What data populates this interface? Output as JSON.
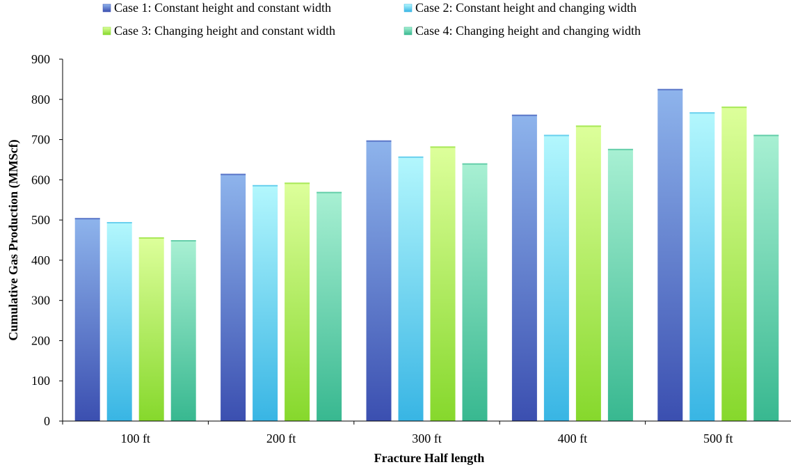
{
  "chart_data": {
    "type": "bar",
    "title": "",
    "xlabel": "Fracture Half length",
    "ylabel": "Cumulative Gas Production (MMScf)",
    "categories": [
      "100 ft",
      "200 ft",
      "300 ft",
      "400 ft",
      "500 ft"
    ],
    "ylim": [
      0,
      900
    ],
    "yticks": [
      0,
      100,
      200,
      300,
      400,
      500,
      600,
      700,
      800,
      900
    ],
    "grid": false,
    "legend_position": "top",
    "series": [
      {
        "name": "Case 1: Constant height and constant width",
        "values": [
          505,
          615,
          698,
          762,
          826
        ],
        "color_top": "#8eb4ec",
        "color_bottom": "#3b4fb0"
      },
      {
        "name": "Case 2: Constant height and changing width",
        "values": [
          495,
          587,
          658,
          712,
          768
        ],
        "color_top": "#b3f7fd",
        "color_bottom": "#38b5e4"
      },
      {
        "name": "Case 3: Changing height and constant width",
        "values": [
          457,
          593,
          683,
          735,
          782
        ],
        "color_top": "#ddff9b",
        "color_bottom": "#86d82c"
      },
      {
        "name": "Case 4: Changing height and changing width",
        "values": [
          450,
          570,
          641,
          677,
          712
        ],
        "color_top": "#a8f0d3",
        "color_bottom": "#38b890"
      }
    ]
  }
}
